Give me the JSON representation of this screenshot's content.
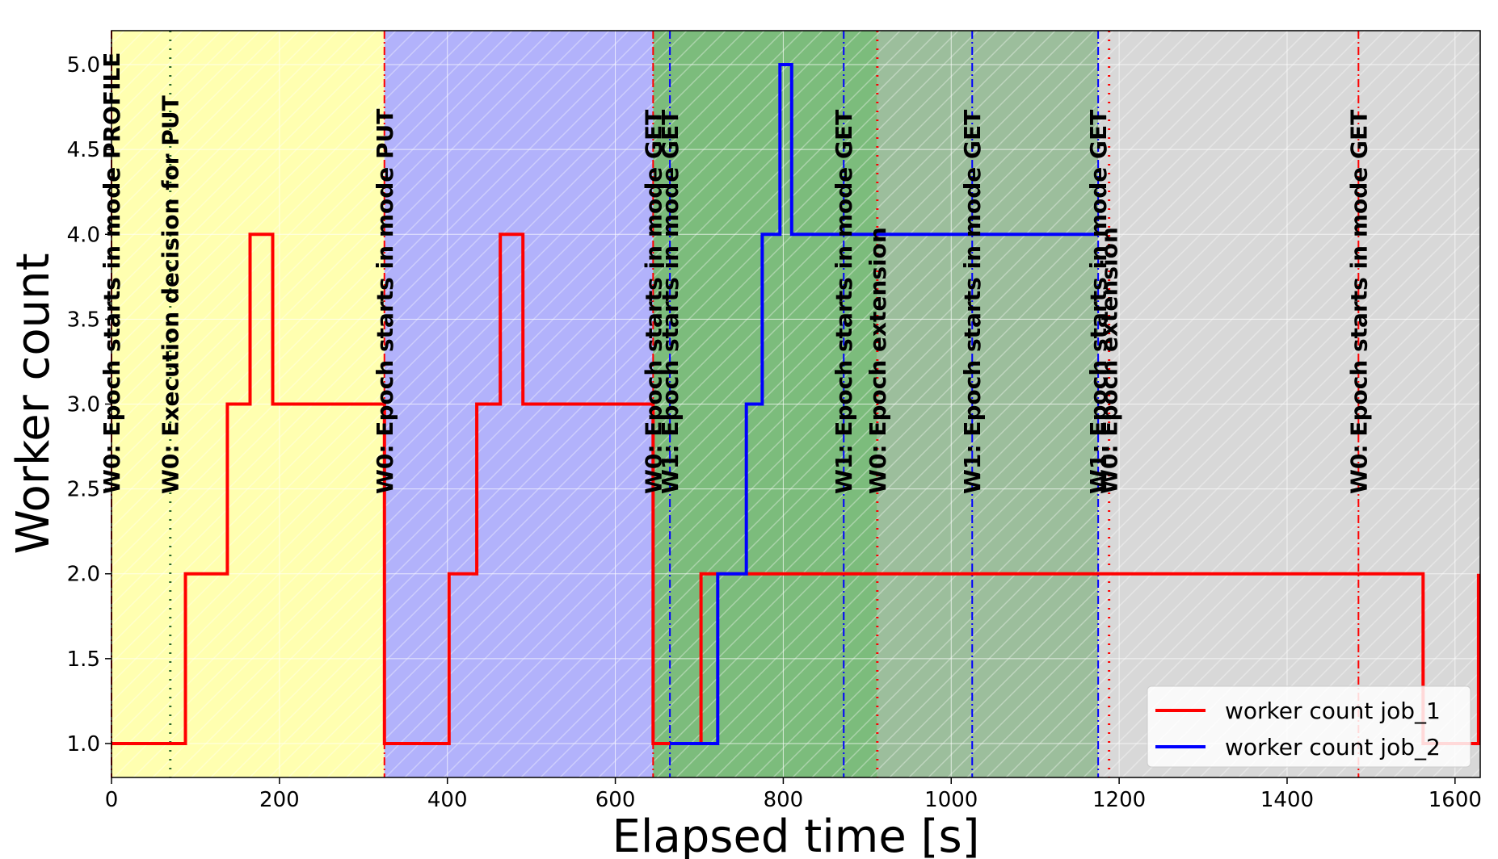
{
  "chart_data": {
    "type": "line",
    "step": true,
    "xlabel": "Elapsed time [s]",
    "ylabel": "Worker count",
    "xlim": [
      0,
      1630
    ],
    "ylim": [
      0.8,
      5.2
    ],
    "xticks": [
      0,
      200,
      400,
      600,
      800,
      1000,
      1200,
      1400,
      1600
    ],
    "yticks": [
      1.0,
      1.5,
      2.0,
      2.5,
      3.0,
      3.5,
      4.0,
      4.5,
      5.0
    ],
    "grid": true,
    "legend_position": "lower-right",
    "regions": [
      {
        "start": 0,
        "end": 325,
        "color": "#ffffb0",
        "label": "PROFILE"
      },
      {
        "start": 325,
        "end": 645,
        "color": "#b2b2fb",
        "label": "PUT"
      },
      {
        "start": 645,
        "end": 912,
        "color": "#7cbc7c",
        "label": "GET"
      },
      {
        "start": 912,
        "end": 1175,
        "color": "#9cbe9c",
        "label": "GET"
      },
      {
        "start": 1175,
        "end": 1630,
        "color": "#d8d8d8",
        "label": "GET"
      }
    ],
    "series": [
      {
        "name": "worker count job_1",
        "color": "#ff0000",
        "points": [
          [
            0,
            1
          ],
          [
            88,
            1
          ],
          [
            88,
            2
          ],
          [
            138,
            2
          ],
          [
            138,
            3
          ],
          [
            165,
            3
          ],
          [
            165,
            4
          ],
          [
            192,
            4
          ],
          [
            192,
            3
          ],
          [
            325,
            3
          ],
          [
            325,
            1
          ],
          [
            402,
            1
          ],
          [
            402,
            2
          ],
          [
            435,
            2
          ],
          [
            435,
            3
          ],
          [
            463,
            3
          ],
          [
            463,
            4
          ],
          [
            490,
            4
          ],
          [
            490,
            3
          ],
          [
            645,
            3
          ],
          [
            645,
            1
          ],
          [
            702,
            1
          ],
          [
            702,
            2
          ],
          [
            1562,
            2
          ],
          [
            1562,
            1
          ],
          [
            1628,
            1
          ],
          [
            1628,
            2
          ]
        ]
      },
      {
        "name": "worker count job_2",
        "color": "#0000ff",
        "points": [
          [
            665,
            1
          ],
          [
            722,
            1
          ],
          [
            722,
            2
          ],
          [
            756,
            2
          ],
          [
            756,
            3
          ],
          [
            775,
            3
          ],
          [
            775,
            4
          ],
          [
            796,
            4
          ],
          [
            796,
            5
          ],
          [
            810,
            5
          ],
          [
            810,
            4
          ],
          [
            1175,
            4
          ]
        ]
      }
    ],
    "annotations": [
      {
        "x": 0,
        "text": "W0: Epoch starts in mode PROFILE",
        "color": "#ff0000",
        "style": "dashdot"
      },
      {
        "x": 70,
        "text": "W0: Execution decision for PUT",
        "color": "#2e6b2e",
        "style": "dotted"
      },
      {
        "x": 325,
        "text": "W0: Epoch starts in mode PUT",
        "color": "#ff0000",
        "style": "dashdot"
      },
      {
        "x": 645,
        "text": "W0: Epoch starts in mode GET",
        "color": "#ff0000",
        "style": "dashdot"
      },
      {
        "x": 665,
        "text": "W1: Epoch starts in mode GET",
        "color": "#0000ff",
        "style": "dashdot"
      },
      {
        "x": 872,
        "text": "W1: Epoch starts in mode GET",
        "color": "#0000ff",
        "style": "dashdot"
      },
      {
        "x": 912,
        "text": "W0: Epoch extension",
        "color": "#ff0000",
        "style": "dotted"
      },
      {
        "x": 1025,
        "text": "W1: Epoch starts in mode GET",
        "color": "#0000ff",
        "style": "dashdot"
      },
      {
        "x": 1175,
        "text": "W1: Epoch starts in mode GET",
        "color": "#0000ff",
        "style": "dashdot"
      },
      {
        "x": 1188,
        "text": "W0: Epoch extension",
        "color": "#ff0000",
        "style": "dotted"
      },
      {
        "x": 1485,
        "text": "W0: Epoch starts in mode GET",
        "color": "#ff0000",
        "style": "dashdot"
      }
    ]
  }
}
